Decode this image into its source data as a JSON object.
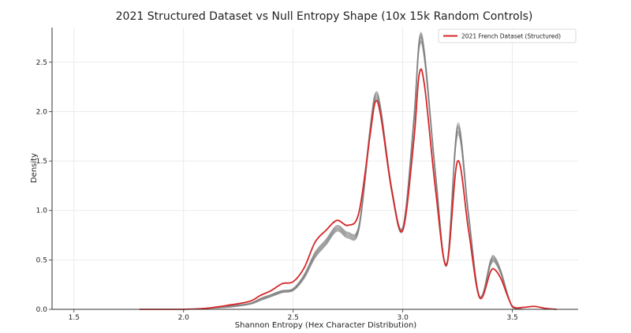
{
  "chart_data": {
    "type": "line",
    "title": "2021 Structured Dataset vs Null Entropy Shape (10x 15k Random Controls)",
    "xlabel": "Shannon Entropy (Hex Character Distribution)",
    "ylabel": "Density",
    "xlim": [
      1.4,
      3.8
    ],
    "ylim": [
      0,
      2.85
    ],
    "xticks": [
      1.5,
      2.0,
      2.5,
      3.0,
      3.5
    ],
    "xtick_labels": [
      "1.5",
      "2.0",
      "2.5",
      "3.0",
      "3.5"
    ],
    "yticks": [
      0.0,
      0.5,
      1.0,
      1.5,
      2.0,
      2.5
    ],
    "ytick_labels": [
      "0.0",
      "0.5",
      "1.0",
      "1.5",
      "2.0",
      "2.5"
    ],
    "grid": true,
    "legend_position": "top-right",
    "legend": [
      {
        "label": "2021 French Dataset (Structured)",
        "color": "#d62728"
      }
    ],
    "colors": {
      "structured": "#d62728",
      "controls": "#808080"
    },
    "series": [
      {
        "name": "2021 French Dataset (Structured)",
        "color": "#d62728",
        "x": [
          1.8,
          1.9,
          2.0,
          2.1,
          2.2,
          2.3,
          2.35,
          2.4,
          2.45,
          2.5,
          2.55,
          2.6,
          2.65,
          2.7,
          2.75,
          2.8,
          2.85,
          2.875,
          2.9,
          2.95,
          3.0,
          3.05,
          3.075,
          3.1,
          3.15,
          3.2,
          3.25,
          3.3,
          3.35,
          3.4,
          3.42,
          3.45,
          3.5,
          3.55,
          3.6,
          3.65,
          3.7
        ],
        "y": [
          0.0,
          0.0,
          0.0,
          0.01,
          0.04,
          0.08,
          0.14,
          0.19,
          0.26,
          0.28,
          0.42,
          0.68,
          0.8,
          0.9,
          0.85,
          0.98,
          1.75,
          2.1,
          1.95,
          1.2,
          0.8,
          1.7,
          2.38,
          2.25,
          1.2,
          0.45,
          1.5,
          0.8,
          0.12,
          0.38,
          0.4,
          0.3,
          0.03,
          0.02,
          0.03,
          0.01,
          0.0
        ]
      }
    ],
    "control_series": [
      {
        "color": "#808080",
        "x": [
          1.8,
          2.0,
          2.1,
          2.2,
          2.3,
          2.35,
          2.4,
          2.45,
          2.5,
          2.55,
          2.6,
          2.65,
          2.7,
          2.75,
          2.8,
          2.85,
          2.875,
          2.9,
          2.95,
          3.0,
          3.05,
          3.075,
          3.1,
          3.15,
          3.2,
          3.25,
          3.3,
          3.35,
          3.4,
          3.42,
          3.45,
          3.5,
          3.55,
          3.6,
          3.7
        ],
        "y": [
          0.0,
          0.0,
          0.01,
          0.03,
          0.06,
          0.1,
          0.14,
          0.18,
          0.2,
          0.33,
          0.55,
          0.68,
          0.82,
          0.75,
          0.83,
          1.78,
          2.15,
          2.0,
          1.2,
          0.82,
          1.9,
          2.7,
          2.55,
          1.35,
          0.45,
          1.82,
          0.95,
          0.13,
          0.47,
          0.5,
          0.36,
          0.02,
          0.0,
          0.0,
          0.0
        ]
      },
      {
        "color": "#808080",
        "x": [
          1.8,
          2.0,
          2.1,
          2.2,
          2.3,
          2.35,
          2.4,
          2.45,
          2.5,
          2.55,
          2.6,
          2.65,
          2.7,
          2.75,
          2.8,
          2.85,
          2.875,
          2.9,
          2.95,
          3.0,
          3.05,
          3.075,
          3.1,
          3.15,
          3.2,
          3.25,
          3.3,
          3.35,
          3.4,
          3.42,
          3.45,
          3.5,
          3.55,
          3.6,
          3.7
        ],
        "y": [
          0.0,
          0.0,
          0.01,
          0.03,
          0.06,
          0.11,
          0.15,
          0.19,
          0.21,
          0.35,
          0.57,
          0.7,
          0.84,
          0.77,
          0.85,
          1.82,
          2.18,
          2.03,
          1.22,
          0.83,
          1.93,
          2.73,
          2.58,
          1.37,
          0.46,
          1.86,
          0.97,
          0.13,
          0.49,
          0.52,
          0.37,
          0.02,
          0.0,
          0.0,
          0.0
        ]
      },
      {
        "color": "#808080",
        "x": [
          1.8,
          2.0,
          2.1,
          2.2,
          2.3,
          2.35,
          2.4,
          2.45,
          2.5,
          2.55,
          2.6,
          2.65,
          2.7,
          2.75,
          2.8,
          2.85,
          2.875,
          2.9,
          2.95,
          3.0,
          3.05,
          3.075,
          3.1,
          3.15,
          3.2,
          3.25,
          3.3,
          3.35,
          3.4,
          3.42,
          3.45,
          3.5,
          3.55,
          3.6,
          3.7
        ],
        "y": [
          0.0,
          0.0,
          0.01,
          0.02,
          0.05,
          0.09,
          0.13,
          0.17,
          0.19,
          0.32,
          0.53,
          0.66,
          0.8,
          0.73,
          0.81,
          1.75,
          2.12,
          1.97,
          1.18,
          0.81,
          1.87,
          2.66,
          2.52,
          1.33,
          0.44,
          1.78,
          0.93,
          0.12,
          0.45,
          0.48,
          0.35,
          0.02,
          0.0,
          0.0,
          0.0
        ]
      },
      {
        "color": "#808080",
        "x": [
          1.8,
          2.0,
          2.1,
          2.2,
          2.3,
          2.35,
          2.4,
          2.45,
          2.5,
          2.55,
          2.6,
          2.65,
          2.7,
          2.75,
          2.8,
          2.85,
          2.875,
          2.9,
          2.95,
          3.0,
          3.05,
          3.075,
          3.1,
          3.15,
          3.2,
          3.25,
          3.3,
          3.35,
          3.4,
          3.42,
          3.45,
          3.5,
          3.55,
          3.6,
          3.7
        ],
        "y": [
          0.0,
          0.0,
          0.01,
          0.03,
          0.06,
          0.1,
          0.14,
          0.18,
          0.2,
          0.34,
          0.56,
          0.69,
          0.83,
          0.76,
          0.84,
          1.8,
          2.16,
          2.01,
          1.21,
          0.82,
          1.91,
          2.71,
          2.56,
          1.36,
          0.45,
          1.84,
          0.96,
          0.13,
          0.48,
          0.51,
          0.36,
          0.02,
          0.0,
          0.0,
          0.0
        ]
      },
      {
        "color": "#808080",
        "x": [
          1.8,
          2.0,
          2.1,
          2.2,
          2.3,
          2.35,
          2.4,
          2.45,
          2.5,
          2.55,
          2.6,
          2.65,
          2.7,
          2.75,
          2.8,
          2.85,
          2.875,
          2.9,
          2.95,
          3.0,
          3.05,
          3.075,
          3.1,
          3.15,
          3.2,
          3.25,
          3.3,
          3.35,
          3.4,
          3.42,
          3.45,
          3.5,
          3.55,
          3.6,
          3.7
        ],
        "y": [
          0.0,
          0.0,
          0.01,
          0.03,
          0.05,
          0.1,
          0.14,
          0.18,
          0.2,
          0.33,
          0.54,
          0.67,
          0.81,
          0.74,
          0.82,
          1.77,
          2.13,
          1.98,
          1.19,
          0.81,
          1.89,
          2.68,
          2.54,
          1.34,
          0.45,
          1.8,
          0.94,
          0.12,
          0.46,
          0.49,
          0.35,
          0.02,
          0.0,
          0.0,
          0.0
        ]
      },
      {
        "color": "#808080",
        "x": [
          1.8,
          2.0,
          2.1,
          2.2,
          2.3,
          2.35,
          2.4,
          2.45,
          2.5,
          2.55,
          2.6,
          2.65,
          2.7,
          2.75,
          2.8,
          2.85,
          2.875,
          2.9,
          2.95,
          3.0,
          3.05,
          3.075,
          3.1,
          3.15,
          3.2,
          3.25,
          3.3,
          3.35,
          3.4,
          3.42,
          3.45,
          3.5,
          3.55,
          3.6,
          3.7
        ],
        "y": [
          0.0,
          0.0,
          0.01,
          0.03,
          0.06,
          0.11,
          0.15,
          0.19,
          0.21,
          0.35,
          0.58,
          0.71,
          0.85,
          0.78,
          0.86,
          1.84,
          2.19,
          2.04,
          1.23,
          0.84,
          1.94,
          2.74,
          2.6,
          1.38,
          0.47,
          1.88,
          0.98,
          0.14,
          0.5,
          0.53,
          0.38,
          0.02,
          0.0,
          0.0,
          0.0
        ]
      },
      {
        "color": "#808080",
        "x": [
          1.8,
          2.0,
          2.1,
          2.2,
          2.3,
          2.35,
          2.4,
          2.45,
          2.5,
          2.55,
          2.6,
          2.65,
          2.7,
          2.75,
          2.8,
          2.85,
          2.875,
          2.9,
          2.95,
          3.0,
          3.05,
          3.075,
          3.1,
          3.15,
          3.2,
          3.25,
          3.3,
          3.35,
          3.4,
          3.42,
          3.45,
          3.5,
          3.55,
          3.6,
          3.7
        ],
        "y": [
          0.0,
          0.0,
          0.01,
          0.02,
          0.05,
          0.09,
          0.13,
          0.17,
          0.19,
          0.31,
          0.52,
          0.65,
          0.79,
          0.72,
          0.8,
          1.74,
          2.1,
          1.95,
          1.17,
          0.8,
          1.85,
          2.64,
          2.5,
          1.32,
          0.44,
          1.76,
          0.92,
          0.12,
          0.44,
          0.47,
          0.34,
          0.02,
          0.0,
          0.0,
          0.0
        ]
      },
      {
        "color": "#808080",
        "x": [
          1.8,
          2.0,
          2.1,
          2.2,
          2.3,
          2.35,
          2.4,
          2.45,
          2.5,
          2.55,
          2.6,
          2.65,
          2.7,
          2.75,
          2.8,
          2.85,
          2.875,
          2.9,
          2.95,
          3.0,
          3.05,
          3.075,
          3.1,
          3.15,
          3.2,
          3.25,
          3.3,
          3.35,
          3.4,
          3.42,
          3.45,
          3.5,
          3.55,
          3.6,
          3.7
        ],
        "y": [
          0.0,
          0.0,
          0.01,
          0.03,
          0.06,
          0.1,
          0.14,
          0.18,
          0.2,
          0.34,
          0.55,
          0.68,
          0.82,
          0.75,
          0.83,
          1.79,
          2.14,
          1.99,
          1.2,
          0.82,
          1.9,
          2.69,
          2.55,
          1.35,
          0.45,
          1.83,
          0.95,
          0.13,
          0.47,
          0.5,
          0.36,
          0.02,
          0.0,
          0.0,
          0.0
        ]
      },
      {
        "color": "#808080",
        "x": [
          1.8,
          2.0,
          2.1,
          2.2,
          2.3,
          2.35,
          2.4,
          2.45,
          2.5,
          2.55,
          2.6,
          2.65,
          2.7,
          2.75,
          2.8,
          2.85,
          2.875,
          2.9,
          2.95,
          3.0,
          3.05,
          3.075,
          3.1,
          3.15,
          3.2,
          3.25,
          3.3,
          3.35,
          3.4,
          3.42,
          3.45,
          3.5,
          3.55,
          3.6,
          3.7
        ],
        "y": [
          0.0,
          0.0,
          0.01,
          0.03,
          0.06,
          0.11,
          0.15,
          0.19,
          0.21,
          0.35,
          0.57,
          0.7,
          0.84,
          0.77,
          0.85,
          1.81,
          2.17,
          2.02,
          1.22,
          0.83,
          1.92,
          2.72,
          2.57,
          1.37,
          0.46,
          1.85,
          0.97,
          0.13,
          0.49,
          0.52,
          0.37,
          0.02,
          0.0,
          0.0,
          0.0
        ]
      },
      {
        "color": "#808080",
        "x": [
          1.8,
          2.0,
          2.1,
          2.2,
          2.3,
          2.35,
          2.4,
          2.45,
          2.5,
          2.55,
          2.6,
          2.65,
          2.7,
          2.75,
          2.8,
          2.85,
          2.875,
          2.9,
          2.95,
          3.0,
          3.05,
          3.075,
          3.1,
          3.15,
          3.2,
          3.25,
          3.3,
          3.35,
          3.4,
          3.42,
          3.45,
          3.5,
          3.55,
          3.6,
          3.7
        ],
        "y": [
          0.0,
          0.0,
          0.01,
          0.02,
          0.05,
          0.09,
          0.13,
          0.17,
          0.19,
          0.32,
          0.53,
          0.66,
          0.8,
          0.73,
          0.81,
          1.76,
          2.11,
          1.96,
          1.18,
          0.8,
          1.86,
          2.65,
          2.51,
          1.33,
          0.44,
          1.79,
          0.93,
          0.12,
          0.45,
          0.48,
          0.34,
          0.02,
          0.0,
          0.0,
          0.0
        ]
      }
    ]
  }
}
